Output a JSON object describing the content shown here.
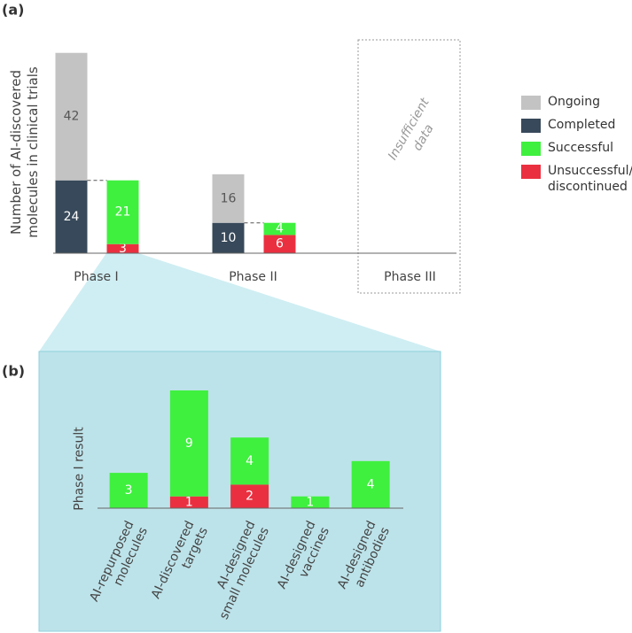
{
  "chart_data": [
    {
      "type": "bar",
      "title": "(a)",
      "y_label": "Number of AI-discovered molecules in clinical trials",
      "categories": [
        "Phase I",
        "Phase II",
        "Phase III"
      ],
      "series": [
        {
          "name": "Ongoing",
          "color": "#c3c3c3",
          "values": [
            42,
            16,
            null
          ]
        },
        {
          "name": "Completed",
          "color": "#37495a",
          "values": [
            24,
            10,
            null
          ]
        },
        {
          "name": "Successful",
          "color": "#3ff03f",
          "values": [
            21,
            4,
            null
          ]
        },
        {
          "name": "Unsuccessful/ discontinued",
          "color": "#ea3040",
          "values": [
            3,
            6,
            null
          ]
        }
      ],
      "annotation": "Insufficient data",
      "ylim": [
        0,
        70
      ]
    },
    {
      "type": "bar",
      "title": "(b)",
      "y_label": "Phase I result",
      "categories": [
        "AI-repurposed molecules",
        "AI-discovered targets",
        "AI-designed small molecules",
        "AI-designed vaccines",
        "AI-designed antibodies"
      ],
      "series": [
        {
          "color": "#3ff03f",
          "values": [
            3,
            9,
            4,
            1,
            4
          ]
        },
        {
          "color": "#ea3040",
          "values": [
            null,
            1,
            2,
            null,
            null
          ]
        }
      ],
      "ylim": [
        0,
        10
      ]
    }
  ]
}
